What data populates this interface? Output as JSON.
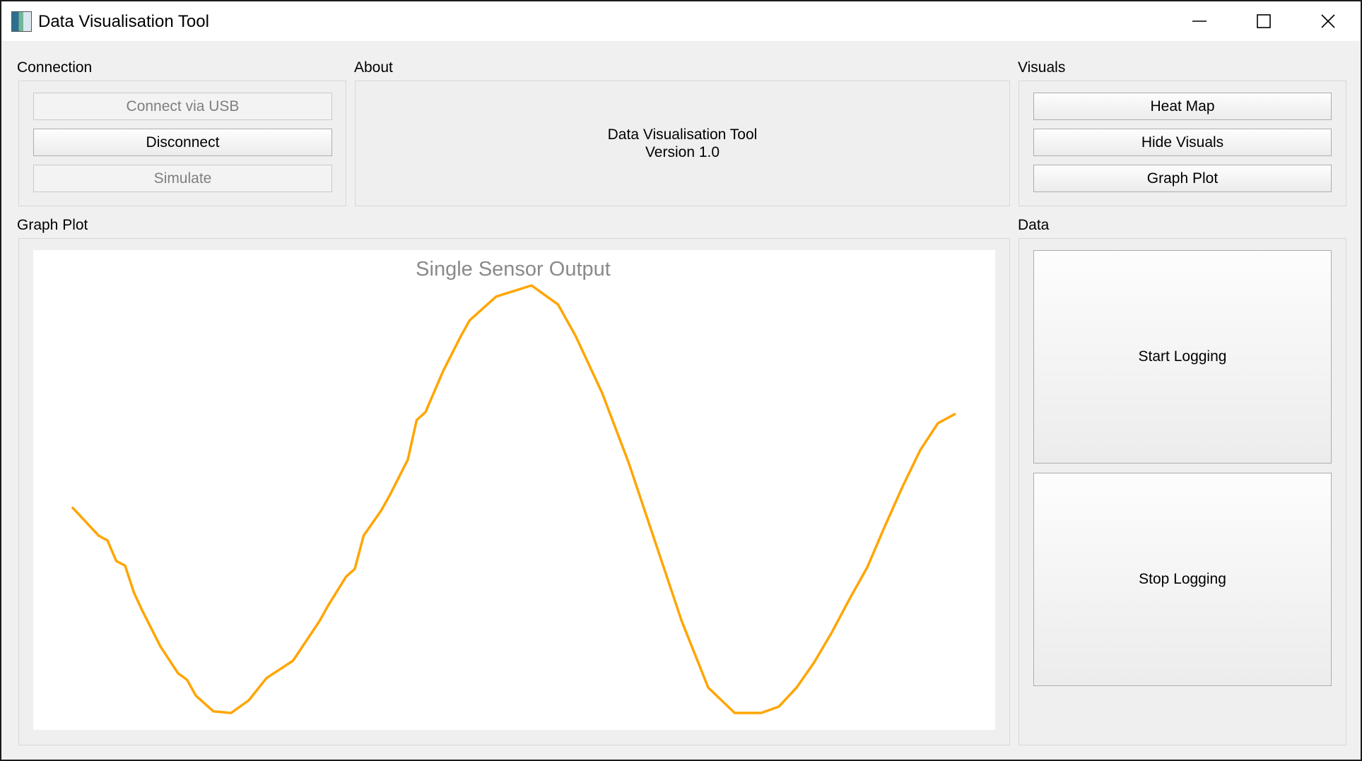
{
  "window": {
    "title": "Data Visualisation Tool",
    "controls": {
      "minimize_icon": "minimize-icon",
      "maximize_icon": "maximize-icon",
      "close_icon": "close-icon"
    }
  },
  "connection": {
    "label": "Connection",
    "buttons": [
      {
        "label": "Connect via USB",
        "enabled": false
      },
      {
        "label": "Disconnect",
        "enabled": true
      },
      {
        "label": "Simulate",
        "enabled": false
      }
    ]
  },
  "about": {
    "label": "About",
    "line1": "Data Visualisation Tool",
    "line2": "Version 1.0"
  },
  "visuals": {
    "label": "Visuals",
    "buttons": [
      {
        "label": "Heat Map"
      },
      {
        "label": "Hide Visuals"
      },
      {
        "label": "Graph Plot"
      }
    ]
  },
  "graph": {
    "label": "Graph Plot"
  },
  "data_panel": {
    "label": "Data",
    "start_label": "Start Logging",
    "stop_label": "Stop Logging"
  },
  "chart_data": {
    "type": "line",
    "title": "Single Sensor Output",
    "xlabel": "",
    "ylabel": "",
    "grid": false,
    "axes_visible": false,
    "color": "#ffa500",
    "series": [
      {
        "x": [
          0,
          3,
          4,
          5,
          6,
          7,
          8,
          10,
          12,
          13,
          14,
          16,
          18,
          20,
          22,
          25,
          28,
          29,
          31,
          32,
          33,
          35,
          36,
          38,
          39,
          40,
          42,
          44,
          45,
          48,
          52,
          55,
          57,
          60,
          63,
          66,
          69,
          72,
          75,
          78,
          80,
          82,
          84,
          86,
          88,
          90,
          92,
          94,
          96,
          98,
          100
        ],
        "y": [
          0.42,
          0.24,
          0.21,
          0.08,
          0.05,
          -0.12,
          -0.24,
          -0.46,
          -0.63,
          -0.67,
          -0.77,
          -0.87,
          -0.88,
          -0.8,
          -0.66,
          -0.55,
          -0.3,
          -0.2,
          -0.02,
          0.03,
          0.24,
          0.4,
          0.5,
          0.72,
          0.97,
          1.02,
          1.28,
          1.5,
          1.6,
          1.75,
          1.82,
          1.7,
          1.5,
          1.14,
          0.7,
          0.2,
          -0.3,
          -0.72,
          -0.88,
          -0.88,
          -0.84,
          -0.72,
          -0.56,
          -0.37,
          -0.16,
          0.04,
          0.3,
          0.55,
          0.78,
          0.95,
          1.01
        ]
      }
    ]
  }
}
